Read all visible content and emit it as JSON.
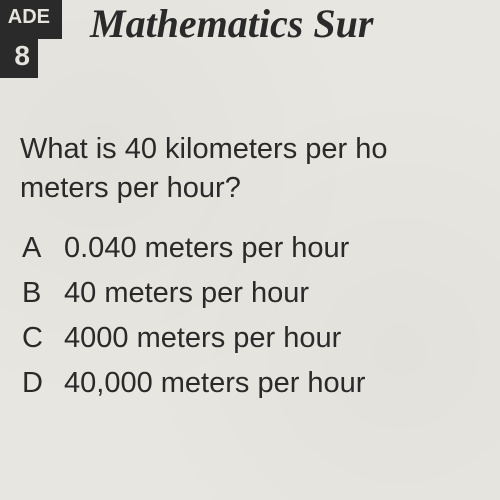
{
  "header": {
    "grade_label": "ADE",
    "grade_number": "8",
    "title": "Mathematics Sur",
    "title_color": "#2a2a2a",
    "box_bg_color": "#2a2a2a",
    "box_text_color": "#e8e6e0"
  },
  "page": {
    "background_color": "#e8e6e0",
    "text_color": "#2a2a2a",
    "question_fontsize": 29,
    "choice_fontsize": 29
  },
  "question": {
    "line1": "What is 40 kilometers per ho",
    "line2": "meters per hour?"
  },
  "choices": [
    {
      "letter": "A",
      "text": "0.040 meters per hour"
    },
    {
      "letter": "B",
      "text": "40 meters per hour"
    },
    {
      "letter": "C",
      "text": "4000 meters per hour"
    },
    {
      "letter": "D",
      "text": "40,000 meters per hour"
    }
  ]
}
